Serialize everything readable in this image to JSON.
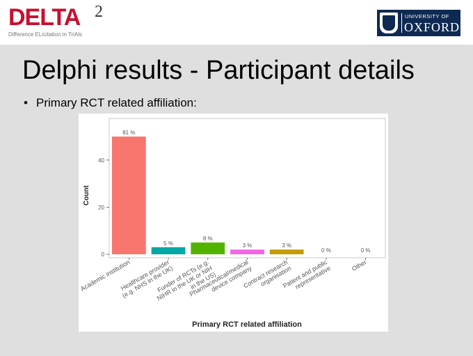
{
  "header": {
    "logo_text": "DELTA",
    "logo_superscript": "2",
    "logo_tagline": "Difference ELicitation in TriAls",
    "partner_logo_line1": "UNIVERSITY OF",
    "partner_logo_line2": "OXFORD"
  },
  "slide": {
    "title": "Delphi results - Participant details",
    "bullet": "Primary RCT related affiliation:",
    "bullet_marker": "•"
  },
  "chart_data": {
    "type": "bar",
    "xlabel": "Primary RCT related affiliation",
    "ylabel": "Count",
    "ylim": [
      0,
      55
    ],
    "yticks": [
      0,
      20,
      40
    ],
    "grid": false,
    "categories": [
      "Academic institution",
      "Healthcare provider (e.g. NHS in the UK)",
      "Funder of RCTs (e.g. NIHR in the UK or NIH in the US)",
      "Pharmaceutical/medical device company",
      "Contract research organisation",
      "Patient and public representative",
      "Other"
    ],
    "values": [
      50,
      3,
      5,
      2,
      2,
      0,
      0
    ],
    "labels": [
      "81 %",
      "5 %",
      "8 %",
      "3 %",
      "3 %",
      "0 %",
      "0 %"
    ],
    "colors": [
      "#f8766d",
      "#00a9a5",
      "#53b400",
      "#f564e3",
      "#c49a00",
      "#00b6eb",
      "#a58aff"
    ]
  }
}
